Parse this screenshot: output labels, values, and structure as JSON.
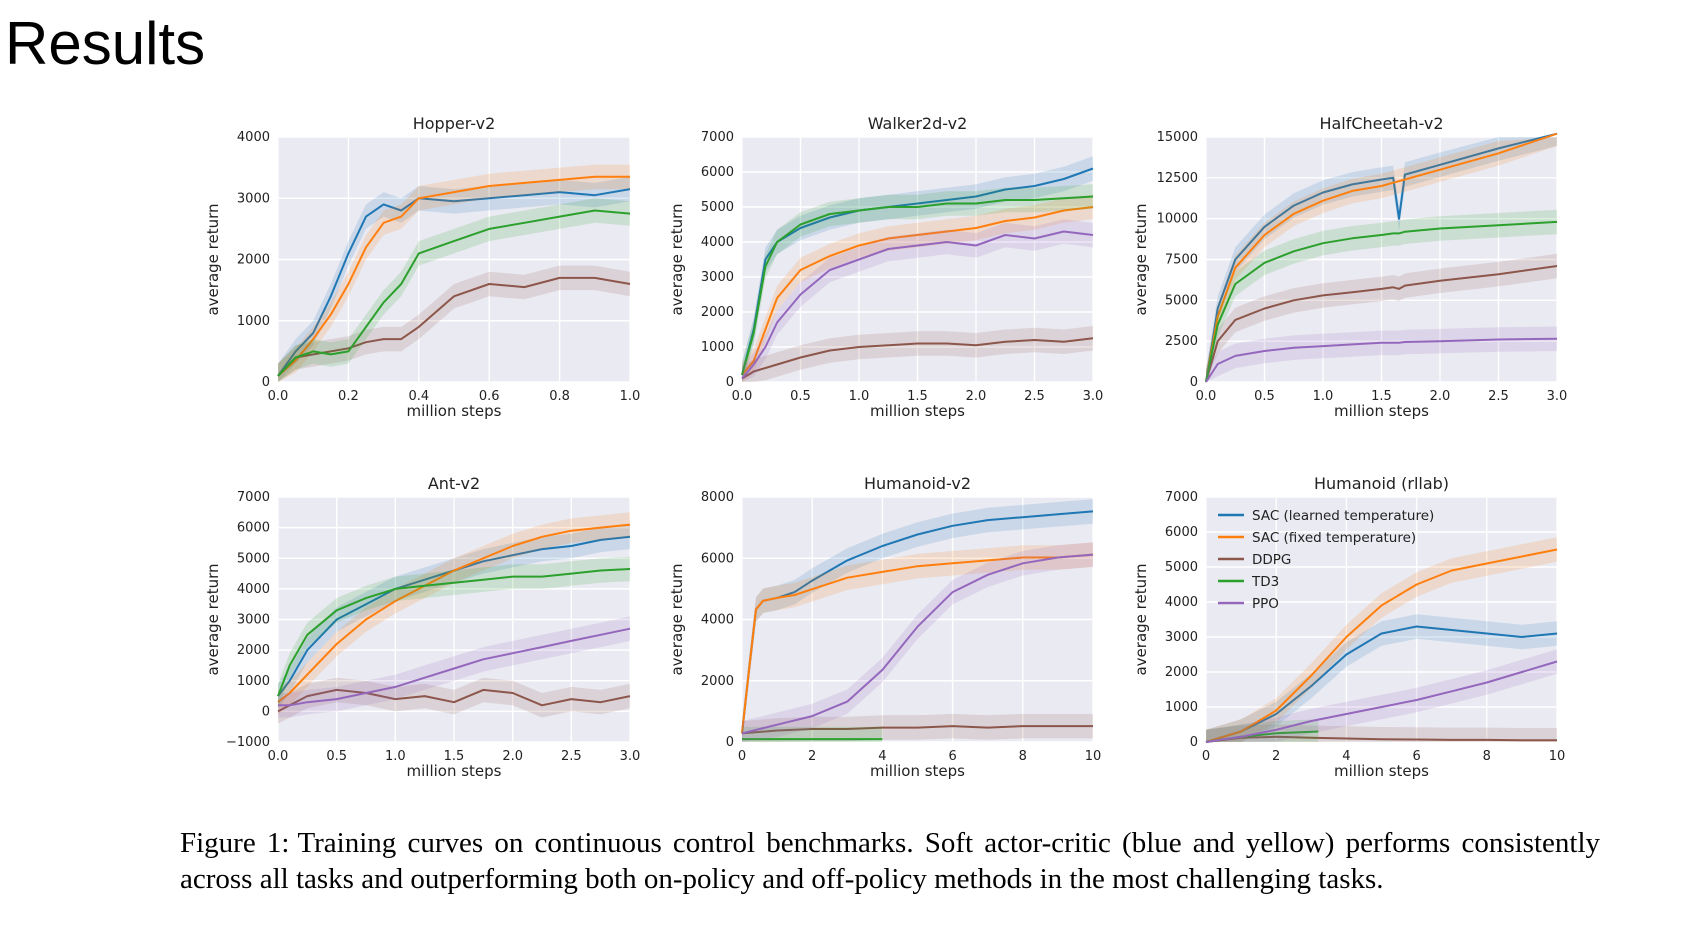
{
  "slide": {
    "title": "Results"
  },
  "caption": {
    "label": "Figure 1:",
    "text": "Training curves on continuous control benchmarks. Soft actor-critic (blue and yellow) performs consistently across all tasks and outperforming both on-policy and off-policy methods in the most challenging tasks."
  },
  "legend": [
    {
      "name": "SAC (learned temperature)",
      "color": "#1f77b4"
    },
    {
      "name": "SAC (fixed temperature)",
      "color": "#ff7f0e"
    },
    {
      "name": "DDPG",
      "color": "#8c564b"
    },
    {
      "name": "TD3",
      "color": "#2ca02c"
    },
    {
      "name": "PPO",
      "color": "#9467bd"
    }
  ],
  "chart_data": [
    {
      "type": "line",
      "title": "Hopper-v2",
      "xlabel": "million steps",
      "ylabel": "average return",
      "xlim": [
        0,
        1.0
      ],
      "ylim": [
        0,
        4000
      ],
      "xticks": [
        "0.0",
        "0.2",
        "0.4",
        "0.6",
        "0.8",
        "1.0"
      ],
      "yticks": [
        "0",
        "1000",
        "2000",
        "3000",
        "4000"
      ],
      "grid": true,
      "x": [
        0,
        0.05,
        0.1,
        0.15,
        0.2,
        0.25,
        0.3,
        0.35,
        0.4,
        0.5,
        0.6,
        0.7,
        0.8,
        0.9,
        1.0
      ],
      "series": [
        {
          "name": "SAC (learned temperature)",
          "values": [
            100,
            500,
            800,
            1400,
            2100,
            2700,
            2900,
            2800,
            3000,
            2950,
            3000,
            3050,
            3100,
            3050,
            3150
          ]
        },
        {
          "name": "SAC (fixed temperature)",
          "values": [
            100,
            350,
            700,
            1100,
            1600,
            2200,
            2600,
            2700,
            3000,
            3100,
            3200,
            3250,
            3300,
            3350,
            3350
          ]
        },
        {
          "name": "DDPG",
          "values": [
            100,
            400,
            450,
            500,
            550,
            650,
            700,
            700,
            900,
            1400,
            1600,
            1550,
            1700,
            1700,
            1600
          ]
        },
        {
          "name": "TD3",
          "values": [
            100,
            400,
            500,
            450,
            500,
            900,
            1300,
            1600,
            2100,
            2300,
            2500,
            2600,
            2700,
            2800,
            2750
          ]
        }
      ]
    },
    {
      "type": "line",
      "title": "Walker2d-v2",
      "xlabel": "million steps",
      "ylabel": "average return",
      "xlim": [
        0,
        3.0
      ],
      "ylim": [
        0,
        7000
      ],
      "xticks": [
        "0.0",
        "0.5",
        "1.0",
        "1.5",
        "2.0",
        "2.5",
        "3.0"
      ],
      "yticks": [
        "0",
        "1000",
        "2000",
        "3000",
        "4000",
        "5000",
        "6000",
        "7000"
      ],
      "grid": true,
      "x": [
        0,
        0.1,
        0.2,
        0.3,
        0.5,
        0.75,
        1.0,
        1.25,
        1.5,
        1.75,
        2.0,
        2.25,
        2.5,
        2.75,
        3.0
      ],
      "series": [
        {
          "name": "SAC (learned temperature)",
          "values": [
            200,
            1500,
            3500,
            4000,
            4400,
            4700,
            4900,
            5000,
            5100,
            5200,
            5300,
            5500,
            5600,
            5800,
            6100
          ]
        },
        {
          "name": "SAC (fixed temperature)",
          "values": [
            200,
            600,
            1500,
            2400,
            3200,
            3600,
            3900,
            4100,
            4200,
            4300,
            4400,
            4600,
            4700,
            4900,
            5000
          ]
        },
        {
          "name": "DDPG",
          "values": [
            100,
            300,
            400,
            500,
            700,
            900,
            1000,
            1050,
            1100,
            1100,
            1050,
            1150,
            1200,
            1150,
            1250
          ]
        },
        {
          "name": "TD3",
          "values": [
            200,
            1400,
            3300,
            4000,
            4500,
            4800,
            4900,
            5000,
            5000,
            5100,
            5100,
            5200,
            5200,
            5250,
            5300
          ]
        },
        {
          "name": "PPO",
          "values": [
            100,
            500,
            1000,
            1700,
            2500,
            3200,
            3500,
            3800,
            3900,
            4000,
            3900,
            4200,
            4100,
            4300,
            4200
          ]
        }
      ]
    },
    {
      "type": "line",
      "title": "HalfCheetah-v2",
      "xlabel": "million steps",
      "ylabel": "average return",
      "xlim": [
        0,
        3.0
      ],
      "ylim": [
        0,
        15000
      ],
      "xticks": [
        "0.0",
        "0.5",
        "1.0",
        "1.5",
        "2.0",
        "2.5",
        "3.0"
      ],
      "yticks": [
        "0",
        "2500",
        "5000",
        "7500",
        "10000",
        "12500",
        "15000"
      ],
      "grid": true,
      "x": [
        0,
        0.1,
        0.25,
        0.5,
        0.75,
        1.0,
        1.25,
        1.5,
        1.6,
        1.65,
        1.7,
        2.0,
        2.5,
        3.0
      ],
      "series": [
        {
          "name": "SAC (learned temperature)",
          "values": [
            0,
            4500,
            7500,
            9500,
            10800,
            11600,
            12100,
            12400,
            12500,
            10000,
            12700,
            13300,
            14300,
            15200
          ]
        },
        {
          "name": "SAC (fixed temperature)",
          "values": [
            0,
            4000,
            7000,
            9000,
            10300,
            11100,
            11700,
            12000,
            12200,
            12300,
            12400,
            13000,
            14000,
            15200
          ]
        },
        {
          "name": "DDPG",
          "values": [
            0,
            2500,
            3800,
            4500,
            5000,
            5300,
            5500,
            5700,
            5800,
            5700,
            5900,
            6200,
            6600,
            7100
          ]
        },
        {
          "name": "TD3",
          "values": [
            0,
            3500,
            6000,
            7300,
            8000,
            8500,
            8800,
            9000,
            9100,
            9100,
            9200,
            9400,
            9600,
            9800
          ]
        },
        {
          "name": "PPO",
          "values": [
            0,
            1100,
            1600,
            1900,
            2100,
            2200,
            2300,
            2400,
            2400,
            2400,
            2450,
            2500,
            2600,
            2650
          ]
        }
      ]
    },
    {
      "type": "line",
      "title": "Ant-v2",
      "xlabel": "million steps",
      "ylabel": "average return",
      "xlim": [
        0,
        3.0
      ],
      "ylim": [
        -1000,
        7000
      ],
      "xticks": [
        "0.0",
        "0.5",
        "1.0",
        "1.5",
        "2.0",
        "2.5",
        "3.0"
      ],
      "yticks": [
        "−1000",
        "0",
        "1000",
        "2000",
        "3000",
        "4000",
        "5000",
        "6000",
        "7000"
      ],
      "grid": true,
      "x": [
        0,
        0.1,
        0.25,
        0.5,
        0.75,
        1.0,
        1.25,
        1.5,
        1.75,
        2.0,
        2.25,
        2.5,
        2.75,
        3.0
      ],
      "series": [
        {
          "name": "SAC (learned temperature)",
          "values": [
            500,
            1000,
            2000,
            3000,
            3500,
            4000,
            4300,
            4600,
            4900,
            5100,
            5300,
            5400,
            5600,
            5700
          ]
        },
        {
          "name": "SAC (fixed temperature)",
          "values": [
            300,
            600,
            1200,
            2200,
            3000,
            3600,
            4100,
            4600,
            5000,
            5400,
            5700,
            5900,
            6000,
            6100
          ]
        },
        {
          "name": "DDPG",
          "values": [
            0,
            200,
            500,
            700,
            600,
            400,
            500,
            300,
            700,
            600,
            200,
            400,
            300,
            500
          ]
        },
        {
          "name": "TD3",
          "values": [
            500,
            1500,
            2500,
            3300,
            3700,
            4000,
            4100,
            4200,
            4300,
            4400,
            4400,
            4500,
            4600,
            4650
          ]
        },
        {
          "name": "PPO",
          "values": [
            200,
            200,
            300,
            400,
            600,
            800,
            1100,
            1400,
            1700,
            1900,
            2100,
            2300,
            2500,
            2700
          ]
        }
      ]
    },
    {
      "type": "line",
      "title": "Humanoid-v2",
      "xlabel": "million steps",
      "ylabel": "average return",
      "xlim": [
        0,
        10
      ],
      "ylim": [
        0,
        8500
      ],
      "xticks": [
        "0",
        "2",
        "4",
        "6",
        "8",
        "10"
      ],
      "yticks": [
        "0",
        "2000",
        "4000",
        "6000",
        "8000"
      ],
      "grid": true,
      "series": [
        {
          "name": "SAC (learned temperature)",
          "x": [
            0,
            0.2,
            0.4,
            0.6,
            1,
            1.5,
            2,
            3,
            4,
            5,
            6,
            7,
            8,
            9,
            10
          ],
          "values": [
            300,
            2500,
            4600,
            4900,
            5000,
            5200,
            5600,
            6300,
            6800,
            7200,
            7500,
            7700,
            7800,
            7900,
            8000
          ]
        },
        {
          "name": "SAC (fixed temperature)",
          "x": [
            0,
            0.2,
            0.4,
            0.6,
            1,
            1.5,
            2,
            3,
            4,
            5,
            6,
            7,
            8,
            9,
            10
          ],
          "values": [
            300,
            2500,
            4600,
            4900,
            5000,
            5100,
            5300,
            5700,
            5900,
            6100,
            6200,
            6300,
            6400,
            6400,
            6500
          ]
        },
        {
          "name": "DDPG",
          "x": [
            0,
            1,
            2,
            3,
            4,
            5,
            6,
            7,
            8,
            9,
            10
          ],
          "values": [
            300,
            400,
            450,
            450,
            500,
            500,
            550,
            500,
            550,
            550,
            550
          ]
        },
        {
          "name": "TD3",
          "x": [
            0,
            1,
            2,
            3,
            4
          ],
          "values": [
            100,
            100,
            100,
            100,
            100
          ]
        },
        {
          "name": "PPO",
          "x": [
            0,
            1,
            2,
            3,
            4,
            5,
            6,
            7,
            8,
            9,
            10
          ],
          "values": [
            300,
            600,
            900,
            1400,
            2500,
            4000,
            5200,
            5800,
            6200,
            6400,
            6500
          ]
        }
      ]
    },
    {
      "type": "line",
      "title": "Humanoid (rllab)",
      "xlabel": "million steps",
      "ylabel": "average return",
      "xlim": [
        0,
        10
      ],
      "ylim": [
        0,
        7000
      ],
      "xticks": [
        "0",
        "2",
        "4",
        "6",
        "8",
        "10"
      ],
      "yticks": [
        "0",
        "1000",
        "2000",
        "3000",
        "4000",
        "5000",
        "6000",
        "7000"
      ],
      "grid": true,
      "legend_position": "top-left",
      "series": [
        {
          "name": "SAC (learned temperature)",
          "x": [
            0,
            1,
            2,
            3,
            4,
            5,
            6,
            7,
            8,
            9,
            10
          ],
          "values": [
            0,
            300,
            800,
            1600,
            2500,
            3100,
            3300,
            3200,
            3100,
            3000,
            3100
          ]
        },
        {
          "name": "SAC (fixed temperature)",
          "x": [
            0,
            1,
            2,
            3,
            4,
            5,
            6,
            7,
            8,
            9,
            10
          ],
          "values": [
            0,
            300,
            900,
            1900,
            3000,
            3900,
            4500,
            4900,
            5100,
            5300,
            5500
          ]
        },
        {
          "name": "DDPG",
          "x": [
            0,
            1,
            2,
            3,
            4,
            5,
            6,
            7,
            8,
            9,
            10
          ],
          "values": [
            0,
            120,
            150,
            120,
            100,
            80,
            70,
            60,
            60,
            50,
            50
          ]
        },
        {
          "name": "TD3",
          "x": [
            0,
            1,
            2,
            3.2
          ],
          "values": [
            0,
            150,
            250,
            300
          ]
        },
        {
          "name": "PPO",
          "x": [
            0,
            1,
            2,
            3,
            4,
            5,
            6,
            7,
            8,
            9,
            10
          ],
          "values": [
            0,
            150,
            350,
            600,
            800,
            1000,
            1200,
            1450,
            1700,
            2000,
            2300
          ]
        }
      ]
    }
  ]
}
